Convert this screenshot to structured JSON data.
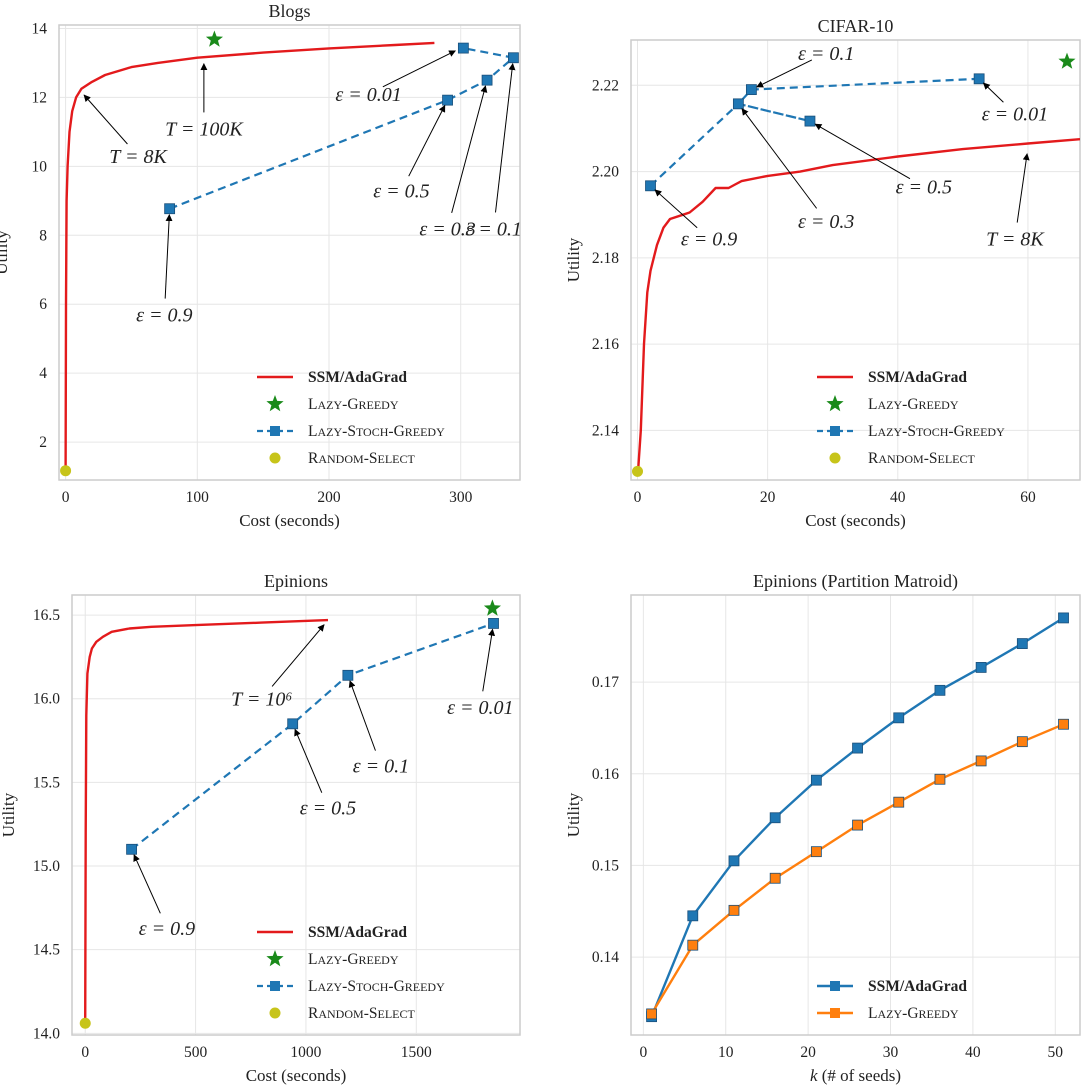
{
  "colors": {
    "ssm": "#e31a1c",
    "stoch": "#1f77b4",
    "greedy_star": "#1a8a1a",
    "random": "#c7c41a",
    "orange": "#ff7f0e",
    "grid": "#e6e6e6",
    "frame": "#cccccc"
  },
  "chart_data": [
    {
      "type": "line",
      "title": "Blogs",
      "xlabel": "Cost (seconds)",
      "ylabel": "Utility",
      "xlim": [
        -5,
        345
      ],
      "ylim": [
        0.9,
        14.1
      ],
      "xticks": [
        0,
        100,
        200,
        300
      ],
      "yticks": [
        2,
        4,
        6,
        8,
        10,
        12,
        14
      ],
      "legend_position": "lower-right",
      "legend": [
        {
          "label": "SSM/AdaGrad",
          "kind": "line",
          "series": "ssm",
          "bold": true
        },
        {
          "label": "Lazy-Greedy",
          "kind": "star",
          "series": "greedy"
        },
        {
          "label": "Lazy-Stoch-Greedy",
          "kind": "dashsquare",
          "series": "stoch"
        },
        {
          "label": "Random-Select",
          "kind": "dot",
          "series": "random"
        }
      ],
      "series": [
        {
          "name": "SSM/AdaGrad",
          "role": "ssm",
          "x": [
            0,
            0.3,
            0.8,
            1.5,
            3,
            5,
            8,
            12,
            20,
            30,
            50,
            70,
            100,
            150,
            200,
            250,
            280
          ],
          "y": [
            1.2,
            6,
            9,
            10,
            11,
            11.6,
            12,
            12.25,
            12.45,
            12.65,
            12.88,
            13.0,
            13.15,
            13.3,
            13.42,
            13.52,
            13.58
          ]
        },
        {
          "name": "Lazy-Stoch-Greedy",
          "role": "stoch",
          "x": [
            79,
            290,
            320,
            340,
            302
          ],
          "y": [
            8.77,
            11.92,
            12.5,
            13.15,
            13.43
          ]
        }
      ],
      "greedy": {
        "x": 113,
        "y": 13.68
      },
      "random": {
        "x": 0,
        "y": 1.17
      },
      "annotations": [
        {
          "label": "T = 8K",
          "target": [
            11,
            12.2
          ],
          "text_at": [
            55,
            10.3
          ]
        },
        {
          "label": "T = 100K",
          "target": [
            105,
            13.15
          ],
          "text_at": [
            105,
            11.1
          ]
        },
        {
          "label": "ε = 0.01",
          "target": [
            300,
            13.43
          ],
          "text_at": [
            230,
            12.1
          ]
        },
        {
          "label": "ε = 0.5",
          "target": [
            290,
            11.92
          ],
          "text_at": [
            255,
            9.3
          ]
        },
        {
          "label": "ε = 0.3",
          "target": [
            320,
            12.5
          ],
          "text_at": [
            290,
            8.2
          ]
        },
        {
          "label": "ε = 0.1",
          "target": [
            340,
            13.15
          ],
          "text_at": [
            325,
            8.2
          ]
        },
        {
          "label": "ε = 0.9",
          "target": [
            79,
            8.77
          ],
          "text_at": [
            75,
            5.7
          ]
        }
      ]
    },
    {
      "type": "line",
      "title": "CIFAR-10",
      "xlabel": "Cost (seconds)",
      "ylabel": "Utility",
      "xlim": [
        -1,
        68
      ],
      "ylim": [
        2.1285,
        2.2305
      ],
      "xticks": [
        0,
        20,
        40,
        60
      ],
      "yticks": [
        2.14,
        2.16,
        2.18,
        2.2,
        2.22
      ],
      "legend_position": "lower-right",
      "legend": [
        {
          "label": "SSM/AdaGrad",
          "kind": "line",
          "series": "ssm",
          "bold": true
        },
        {
          "label": "Lazy-Greedy",
          "kind": "star",
          "series": "greedy"
        },
        {
          "label": "Lazy-Stoch-Greedy",
          "kind": "dashsquare",
          "series": "stoch"
        },
        {
          "label": "Random-Select",
          "kind": "dot",
          "series": "random"
        }
      ],
      "series": [
        {
          "name": "SSM/AdaGrad",
          "role": "ssm",
          "x": [
            0.1,
            0.5,
            1,
            1.5,
            2,
            3,
            4,
            5,
            7,
            8,
            10,
            12,
            13,
            14,
            15,
            16,
            20,
            25,
            30,
            40,
            50,
            60,
            68
          ],
          "y": [
            2.131,
            2.14,
            2.16,
            2.172,
            2.177,
            2.183,
            2.187,
            2.189,
            2.19,
            2.1905,
            2.193,
            2.1962,
            2.1962,
            2.1962,
            2.197,
            2.1978,
            2.199,
            2.2,
            2.2015,
            2.2035,
            2.2052,
            2.2065,
            2.2075
          ]
        },
        {
          "name": "Lazy-Stoch-Greedy",
          "role": "stoch",
          "x": [
            2,
            15.5,
            26.5,
            15.5,
            17.5,
            52.5
          ],
          "y": [
            2.1967,
            2.2157,
            2.2117,
            2.2157,
            2.219,
            2.2215
          ]
        }
      ],
      "greedy": {
        "x": 66,
        "y": 2.2255
      },
      "random": {
        "x": 0,
        "y": 2.1305
      },
      "annotations": [
        {
          "label": "ε = 0.1",
          "target": [
            17.5,
            2.219
          ],
          "text_at": [
            29,
            2.2275
          ]
        },
        {
          "label": "ε = 0.01",
          "target": [
            52.5,
            2.2215
          ],
          "text_at": [
            58,
            2.2135
          ]
        },
        {
          "label": "ε = 0.5",
          "target": [
            26.5,
            2.2117
          ],
          "text_at": [
            44,
            2.1965
          ]
        },
        {
          "label": "ε = 0.3",
          "target": [
            15.5,
            2.2157
          ],
          "text_at": [
            29,
            2.1885
          ]
        },
        {
          "label": "ε = 0.9",
          "target": [
            2,
            2.1967
          ],
          "text_at": [
            11,
            2.1845
          ]
        },
        {
          "label": "T = 8K",
          "target": [
            60,
            2.2055
          ],
          "text_at": [
            58,
            2.1845
          ]
        }
      ]
    },
    {
      "type": "line",
      "title": "Epinions",
      "xlabel": "Cost (seconds)",
      "ylabel": "Utility",
      "xlim": [
        -60,
        1970
      ],
      "ylim": [
        13.99,
        16.62
      ],
      "xticks": [
        0,
        500,
        1000,
        1500
      ],
      "yticks": [
        14.0,
        14.5,
        15.0,
        15.5,
        16.0,
        16.5
      ],
      "legend_position": "lower-right",
      "legend": [
        {
          "label": "SSM/AdaGrad",
          "kind": "line",
          "series": "ssm",
          "bold": true
        },
        {
          "label": "Lazy-Greedy",
          "kind": "star",
          "series": "greedy"
        },
        {
          "label": "Lazy-Stoch-Greedy",
          "kind": "dashsquare",
          "series": "stoch"
        },
        {
          "label": "Random-Select",
          "kind": "dot",
          "series": "random"
        }
      ],
      "series": [
        {
          "name": "SSM/AdaGrad",
          "role": "ssm",
          "x": [
            0,
            2,
            5,
            10,
            20,
            30,
            50,
            80,
            120,
            200,
            300,
            500,
            800,
            1100
          ],
          "y": [
            14.06,
            15.2,
            15.9,
            16.15,
            16.25,
            16.3,
            16.34,
            16.37,
            16.4,
            16.42,
            16.43,
            16.44,
            16.455,
            16.47
          ]
        },
        {
          "name": "Lazy-Stoch-Greedy",
          "role": "stoch",
          "x": [
            210,
            940,
            1190,
            1850
          ],
          "y": [
            15.1,
            15.85,
            16.14,
            16.45
          ]
        }
      ],
      "greedy": {
        "x": 1845,
        "y": 16.54
      },
      "random": {
        "x": 0,
        "y": 14.06
      },
      "annotations": [
        {
          "label": "T = 10⁶",
          "target": [
            1100,
            16.47
          ],
          "text_at": [
            800,
            16.0
          ]
        },
        {
          "label": "ε = 0.01",
          "target": [
            1850,
            16.45
          ],
          "text_at": [
            1790,
            15.95
          ]
        },
        {
          "label": "ε = 0.1",
          "target": [
            1190,
            16.14
          ],
          "text_at": [
            1340,
            15.6
          ]
        },
        {
          "label": "ε = 0.5",
          "target": [
            940,
            15.85
          ],
          "text_at": [
            1100,
            15.35
          ]
        },
        {
          "label": "ε = 0.9",
          "target": [
            210,
            15.1
          ],
          "text_at": [
            370,
            14.63
          ]
        }
      ]
    },
    {
      "type": "line",
      "title": "Epinions (Partition Matroid)",
      "xlabel": "k (# of seeds)",
      "ylabel": "Utility",
      "xlim": [
        -1.5,
        53
      ],
      "ylim": [
        0.1315,
        0.1795
      ],
      "xticks": [
        0,
        10,
        20,
        30,
        40,
        50
      ],
      "yticks": [
        0.14,
        0.15,
        0.16,
        0.17
      ],
      "legend_position": "lower-right",
      "legend": [
        {
          "label": "SSM/AdaGrad",
          "kind": "solidsquare",
          "series": "blue",
          "bold": true
        },
        {
          "label": "Lazy-Greedy",
          "kind": "solidsquare",
          "series": "orange"
        }
      ],
      "series": [
        {
          "name": "SSM/AdaGrad",
          "role": "blue",
          "x": [
            1,
            6,
            11,
            16,
            21,
            26,
            31,
            36,
            41,
            46,
            51
          ],
          "y": [
            0.1335,
            0.1445,
            0.1505,
            0.1552,
            0.1593,
            0.1628,
            0.1661,
            0.1691,
            0.1716,
            0.1742,
            0.177
          ]
        },
        {
          "name": "Lazy-Greedy",
          "role": "orange",
          "x": [
            1,
            6,
            11,
            16,
            21,
            26,
            31,
            36,
            41,
            46,
            51
          ],
          "y": [
            0.1338,
            0.1413,
            0.1451,
            0.1486,
            0.1515,
            0.1544,
            0.1569,
            0.1594,
            0.1614,
            0.1635,
            0.1654
          ]
        }
      ]
    }
  ]
}
